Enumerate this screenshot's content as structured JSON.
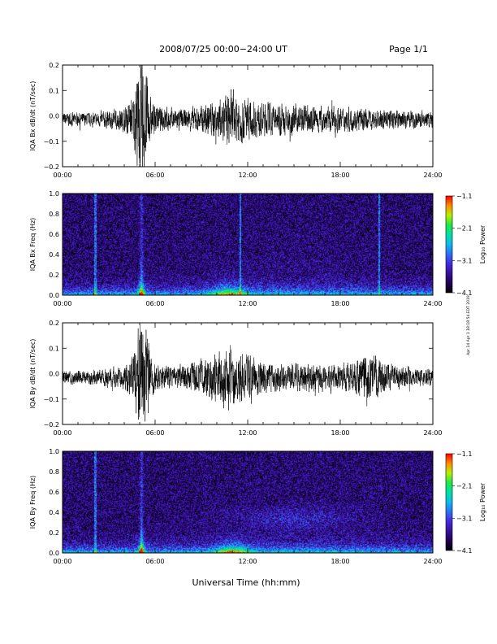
{
  "header": {
    "title": "2008/07/25  00:00−24:00 UT",
    "page": "Page 1/1"
  },
  "footer": {
    "xlabel": "Universal Time (hh:mm)"
  },
  "side_note": "Apr 14 Apr 1 18:18:54 EDT 2019",
  "x_ticks": [
    "00:00",
    "06:00",
    "12:00",
    "18:00",
    "24:00"
  ],
  "chart_data": [
    {
      "type": "line",
      "ylabel": "IQA Bx dB/dt (nT/sec)",
      "xlim": [
        0,
        24
      ],
      "ylim": [
        -0.2,
        0.2
      ],
      "yticks": [
        "0.2",
        "0.1",
        "0.0",
        "−0.1",
        "−0.2"
      ],
      "x": [
        0,
        2,
        4,
        4.6,
        4.9,
        5.1,
        5.3,
        5.5,
        5.7,
        6,
        7,
        8,
        9,
        10,
        10.5,
        11,
        11.5,
        12,
        13,
        14,
        15,
        16,
        17,
        18,
        19,
        20,
        21,
        22,
        23,
        24
      ],
      "envelope": [
        0.025,
        0.025,
        0.04,
        0.09,
        0.2,
        0.22,
        0.2,
        0.15,
        0.08,
        0.05,
        0.045,
        0.04,
        0.05,
        0.07,
        0.09,
        0.1,
        0.09,
        0.07,
        0.06,
        0.06,
        0.055,
        0.055,
        0.045,
        0.045,
        0.04,
        0.04,
        0.035,
        0.035,
        0.03,
        0.03
      ]
    },
    {
      "type": "heatmap",
      "ylabel": "IQA Bx Freq (Hz)",
      "xlim": [
        0,
        24
      ],
      "ylim": [
        0,
        1.0
      ],
      "yticks": [
        "1.0",
        "0.8",
        "0.6",
        "0.4",
        "0.2",
        "0.0"
      ],
      "colorbar": {
        "label": "Log₁₀ Power",
        "ticks": [
          "−1.1",
          "−2.1",
          "−3.1",
          "−4.1"
        ],
        "range": [
          -4.1,
          -1.1
        ]
      },
      "features": [
        {
          "time": 2.1,
          "kind": "vertical-line"
        },
        {
          "time": 5.1,
          "kind": "burst"
        },
        {
          "time": 10.8,
          "kind": "low-frequency-enhancement"
        },
        {
          "time": 11.5,
          "kind": "vertical-line"
        },
        {
          "time": 20.5,
          "kind": "vertical-line"
        }
      ]
    },
    {
      "type": "line",
      "ylabel": "IQA By dB/dt (nT/sec)",
      "xlim": [
        0,
        24
      ],
      "ylim": [
        -0.2,
        0.2
      ],
      "yticks": [
        "0.2",
        "0.1",
        "0.0",
        "−0.1",
        "−0.2"
      ],
      "x": [
        0,
        2,
        4,
        4.6,
        4.9,
        5.1,
        5.3,
        5.5,
        5.7,
        6,
        7,
        8,
        9,
        10,
        10.5,
        11,
        11.5,
        12,
        13,
        14,
        15,
        16,
        17,
        18,
        19,
        19.5,
        20,
        21,
        22,
        23,
        24
      ],
      "envelope": [
        0.025,
        0.025,
        0.04,
        0.1,
        0.2,
        0.23,
        0.2,
        0.16,
        0.09,
        0.05,
        0.04,
        0.045,
        0.06,
        0.09,
        0.11,
        0.12,
        0.1,
        0.08,
        0.06,
        0.05,
        0.05,
        0.05,
        0.05,
        0.05,
        0.06,
        0.08,
        0.09,
        0.05,
        0.04,
        0.03,
        0.03
      ]
    },
    {
      "type": "heatmap",
      "ylabel": "IQA By Freq (Hz)",
      "xlim": [
        0,
        24
      ],
      "ylim": [
        0,
        1.0
      ],
      "yticks": [
        "1.0",
        "0.8",
        "0.6",
        "0.4",
        "0.2",
        "0.0"
      ],
      "colorbar": {
        "label": "Log₁₀ Power",
        "ticks": [
          "−1.1",
          "−2.1",
          "−3.1",
          "−4.1"
        ],
        "range": [
          -4.1,
          -1.1
        ]
      },
      "features": [
        {
          "time": 2.1,
          "kind": "vertical-line"
        },
        {
          "time": 5.1,
          "kind": "burst"
        },
        {
          "time": 11.0,
          "kind": "low-frequency-enhancement"
        },
        {
          "time": 15.0,
          "kind": "band"
        }
      ]
    }
  ]
}
